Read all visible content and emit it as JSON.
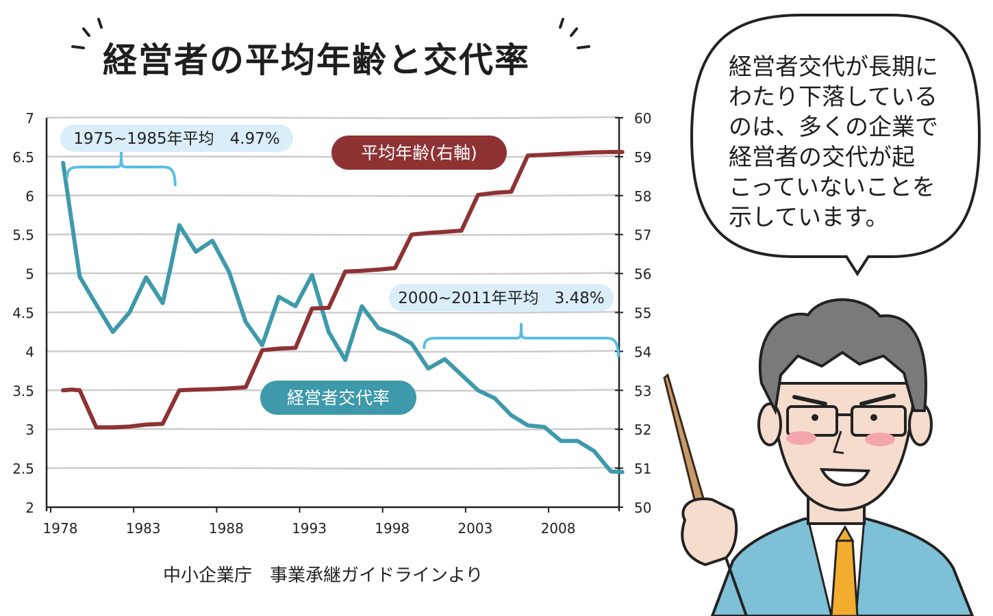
{
  "title": "経営者の平均年齢と交代率",
  "source": "中小企業庁　事業承継ガイドラインより",
  "speech_bubble": {
    "lines": [
      "経営者交代が長期に",
      "わたり下落している",
      "のは、多くの企業で",
      "経営者の交代が起",
      "こっていないことを",
      "示しています。"
    ]
  },
  "colors": {
    "rate_line": "#3e99ab",
    "age_line": "#8e3234",
    "rate_label_bg": "#3e99ab",
    "age_label_bg": "#8e3234",
    "note_bg": "#d9eef9",
    "brace": "#58bde6",
    "grid": "#cccccc"
  },
  "chart_data": {
    "type": "line",
    "title": "経営者の平均年齢と交代率",
    "x_ticks": [
      "1978",
      "1983",
      "1988",
      "1993",
      "1998",
      "2003",
      "2008"
    ],
    "xlim": [
      1978,
      2012
    ],
    "y_left": {
      "ylim": [
        2,
        7
      ],
      "ticks": [
        "2",
        "2.5",
        "3",
        "3.5",
        "4",
        "4.5",
        "5",
        "5.5",
        "6",
        "6.5",
        "7"
      ]
    },
    "y_right": {
      "ylim": [
        50,
        60
      ],
      "ticks": [
        "50",
        "51",
        "52",
        "53",
        "54",
        "55",
        "56",
        "57",
        "58",
        "59",
        "60"
      ]
    },
    "grid": true,
    "series": [
      {
        "name": "経営者交代率",
        "axis": "left",
        "x": [
          1978.5,
          1979.5,
          1980.5,
          1981.5,
          1982.5,
          1983.5,
          1984.5,
          1985,
          1985.5,
          1986.5,
          1987.5,
          1988.5,
          1989.5,
          1990.5,
          1991.5,
          1992.5,
          1993.5,
          1994.5,
          1995.5,
          1996.5,
          1997.5,
          1998.5,
          1999.5,
          2000.5,
          2001.5,
          2002.5,
          2003.5,
          2004.5,
          2005.5,
          2006.5,
          2007.5,
          2008.5,
          2009.5,
          2010.5,
          2011.5,
          2012.2
        ],
        "values": [
          6.42,
          4.96,
          4.6,
          4.25,
          4.5,
          4.95,
          4.62,
          5.1,
          5.62,
          5.28,
          5.42,
          5.02,
          4.38,
          4.08,
          4.7,
          4.58,
          4.98,
          4.25,
          3.89,
          4.58,
          4.3,
          4.22,
          4.1,
          3.78,
          3.9,
          3.7,
          3.5,
          3.4,
          3.18,
          3.05,
          3.03,
          2.85,
          2.85,
          2.72,
          2.46,
          2.45
        ]
      },
      {
        "name": "平均年齢(右軸)",
        "axis": "right",
        "x": [
          1978.5,
          1979,
          1979.5,
          1980.5,
          1981.5,
          1982.5,
          1983.5,
          1984.5,
          1985.5,
          1986.5,
          1987.5,
          1988.5,
          1989.5,
          1990.5,
          1991.5,
          1992.5,
          1993.5,
          1994.5,
          1995.5,
          1996.5,
          1997.5,
          1998.5,
          1999.5,
          2000.5,
          2001.5,
          2002.5,
          2003.5,
          2004.5,
          2005.5,
          2006.5,
          2007.5,
          2008.5,
          2009.5,
          2010.5,
          2011.5,
          2012.2
        ],
        "values": [
          53.0,
          53.02,
          53.0,
          52.05,
          52.05,
          52.07,
          52.12,
          52.14,
          53.0,
          53.02,
          53.03,
          53.05,
          53.08,
          54.03,
          54.07,
          54.09,
          55.1,
          55.12,
          56.05,
          56.07,
          56.1,
          56.14,
          57.0,
          57.04,
          57.07,
          57.1,
          58.02,
          58.07,
          58.1,
          59.03,
          59.05,
          59.07,
          59.09,
          59.11,
          59.12,
          59.12
        ]
      }
    ],
    "annotations": [
      {
        "text": "1975~1985年平均　4.97%",
        "x_range": [
          1979,
          1985.5
        ]
      },
      {
        "text": "2000~2011年平均　3.48%",
        "x_range": [
          2000.5,
          2012.2
        ]
      },
      {
        "text": "平均年齢(右軸)",
        "label_for": "平均年齢(右軸)"
      },
      {
        "text": "経営者交代率",
        "label_for": "経営者交代率"
      }
    ]
  }
}
